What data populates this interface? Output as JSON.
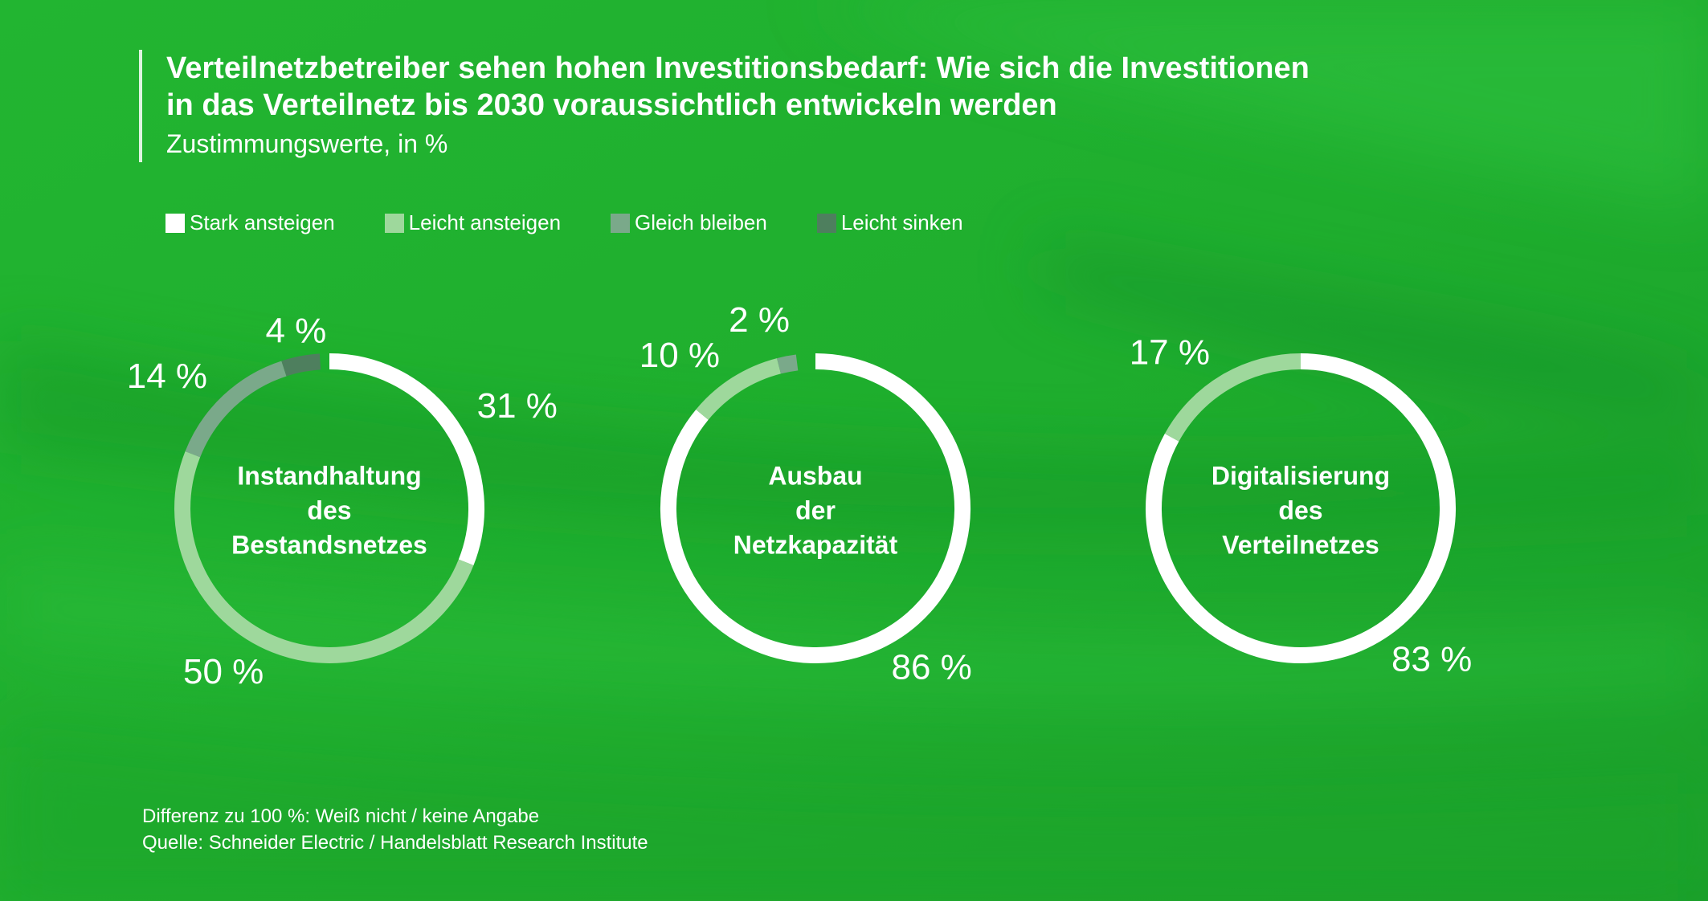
{
  "title_lines": [
    "Verteilnetzbetreiber sehen hohen Investitionsbedarf: Wie sich die Investitionen",
    "in das Verteilnetz bis 2030 voraussichtlich entwickeln werden"
  ],
  "subtitle": "Zustimmungswerte, in %",
  "legend": [
    {
      "label": "Stark ansteigen",
      "color": "#ffffff"
    },
    {
      "label": "Leicht ansteigen",
      "color": "#9ed89c"
    },
    {
      "label": "Gleich bleiben",
      "color": "#7aa98a"
    },
    {
      "label": "Leicht sinken",
      "color": "#4e7f5e"
    }
  ],
  "footer": {
    "note": "Differenz zu 100 %: Weiß nicht / keine Angabe",
    "source": "Quelle: Schneider Electric / Handelsblatt Research Institute"
  },
  "chart_data": [
    {
      "type": "pie",
      "center_label": [
        "Instandhaltung",
        "des",
        "Bestandsnetzes"
      ],
      "series": [
        {
          "name": "Stark ansteigen",
          "value": 31,
          "label": "31 %"
        },
        {
          "name": "Leicht ansteigen",
          "value": 50,
          "label": "50 %"
        },
        {
          "name": "Gleich bleiben",
          "value": 14,
          "label": "14 %"
        },
        {
          "name": "Leicht sinken",
          "value": 4,
          "label": "4 %"
        }
      ]
    },
    {
      "type": "pie",
      "center_label": [
        "Ausbau",
        "der",
        "Netzkapazität"
      ],
      "series": [
        {
          "name": "Stark ansteigen",
          "value": 86,
          "label": "86 %"
        },
        {
          "name": "Leicht ansteigen",
          "value": 10,
          "label": "10 %"
        },
        {
          "name": "Gleich bleiben",
          "value": 2,
          "label": "2 %"
        },
        {
          "name": "Leicht sinken",
          "value": 0,
          "label": ""
        }
      ]
    },
    {
      "type": "pie",
      "center_label": [
        "Digitalisierung",
        "des",
        "Verteilnetzes"
      ],
      "series": [
        {
          "name": "Stark ansteigen",
          "value": 83,
          "label": "83 %"
        },
        {
          "name": "Leicht ansteigen",
          "value": 17,
          "label": "17 %"
        },
        {
          "name": "Gleich bleiben",
          "value": 0,
          "label": ""
        },
        {
          "name": "Leicht sinken",
          "value": 0,
          "label": ""
        }
      ]
    }
  ]
}
